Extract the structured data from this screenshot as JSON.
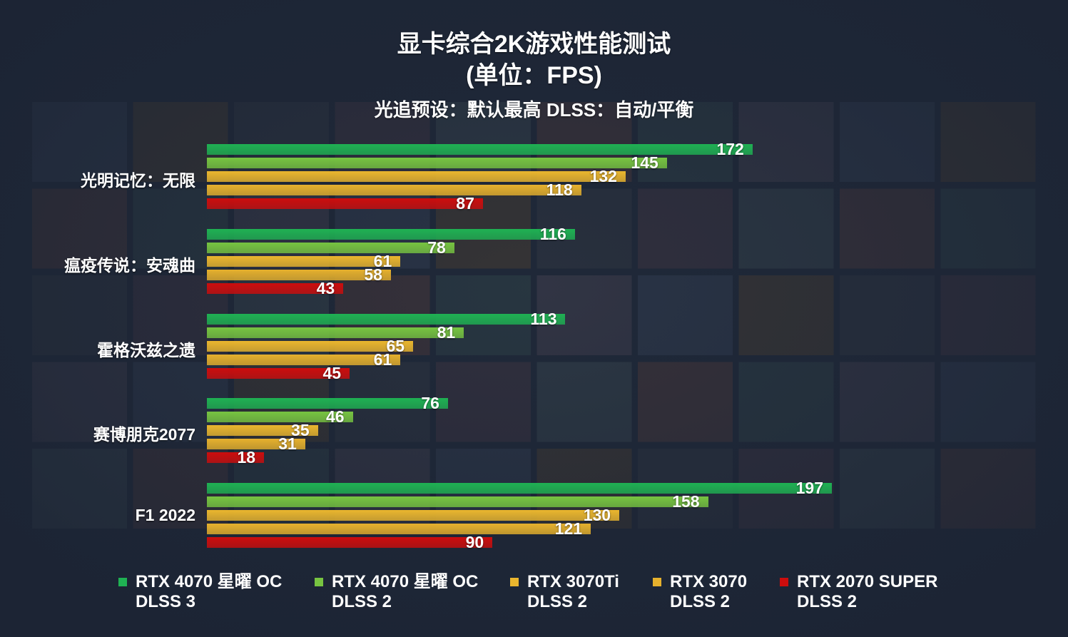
{
  "chart_data": {
    "type": "bar",
    "orientation": "horizontal",
    "title": "显卡综合2K游戏性能测试",
    "subtitle": "(单位：FPS)",
    "note": "光追预设：默认最高   DLSS：自动/平衡",
    "categories": [
      "光明记忆：无限",
      "瘟疫传说：安魂曲",
      "霍格沃兹之遗",
      "赛博朋克2077",
      "F1 2022"
    ],
    "series": [
      {
        "name": "RTX 4070 星曜 OC",
        "name2": "DLSS 3",
        "color": "#1fb153",
        "values": [
          172,
          116,
          113,
          76,
          197
        ]
      },
      {
        "name": "RTX 4070 星曜 OC",
        "name2": "DLSS 2",
        "color": "#77c441",
        "values": [
          145,
          78,
          81,
          46,
          158
        ]
      },
      {
        "name": "RTX 3070Ti",
        "name2": "DLSS 2",
        "color": "#eab62e",
        "values": [
          132,
          61,
          65,
          35,
          130
        ]
      },
      {
        "name": "RTX 3070",
        "name2": "DLSS 2",
        "color": "#e6b12d",
        "values": [
          118,
          58,
          61,
          31,
          121
        ]
      },
      {
        "name": "RTX 2070 SUPER",
        "name2": "DLSS 2",
        "color": "#cc0d0d",
        "values": [
          87,
          43,
          45,
          18,
          90
        ]
      }
    ],
    "xlim": [
      0,
      200
    ],
    "grid": false,
    "legend": "bottom"
  }
}
